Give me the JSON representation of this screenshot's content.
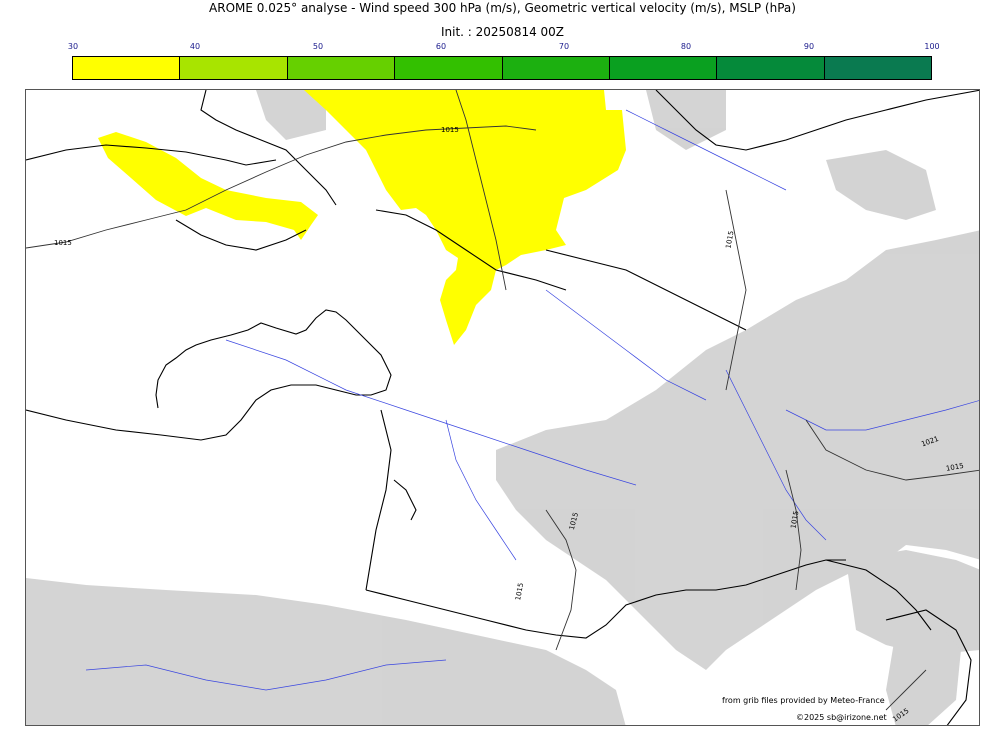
{
  "header": {
    "title": "AROME 0.025° analyse - Wind speed 300 hPa (m/s), Geometric vertical velocity (m/s), MSLP (hPa)",
    "init": "Init. : 20250814 00Z"
  },
  "colorbar": {
    "ticks": [
      "30",
      "40",
      "50",
      "60",
      "70",
      "80",
      "90",
      "100"
    ],
    "colors": [
      "#ffff00",
      "#a8e400",
      "#66d000",
      "#33c000",
      "#1cb010",
      "#0aa020",
      "#058a3a",
      "#0a7a50"
    ]
  },
  "map": {
    "wind_fill_color": "#ffff00",
    "terrain_color": "#cfcfcf",
    "river_color": "#3a46e0",
    "isobar_labels": [
      "1015",
      "1015",
      "1015",
      "1015",
      "1015",
      "1015",
      "1021",
      "1015",
      "1015"
    ]
  },
  "credits": {
    "line1": "from grib files provided by Meteo-France",
    "line2": "©2025 sb@irizone.net"
  }
}
